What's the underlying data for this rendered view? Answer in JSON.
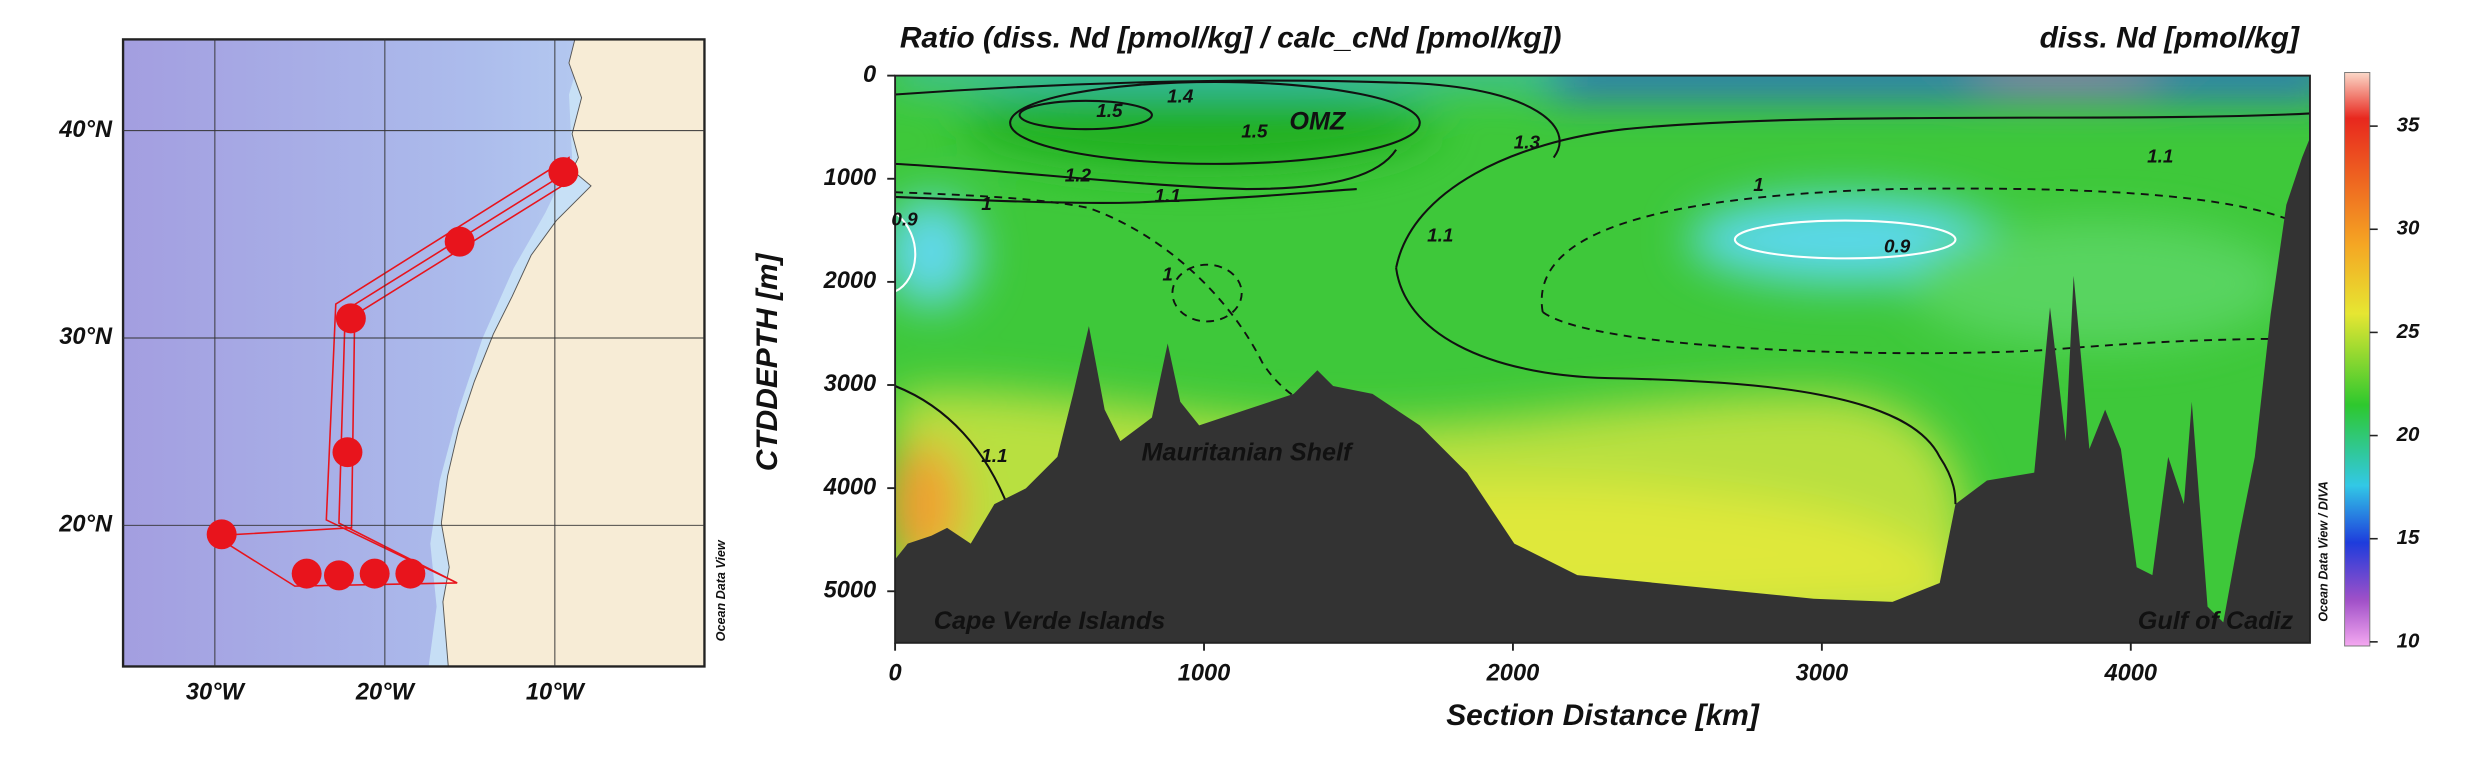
{
  "chart_data": [
    {
      "type": "map",
      "projection": "mercator",
      "credit": "Ocean Data View",
      "x": [
        -9.5,
        -15.6,
        -22.0,
        -22.2,
        -29.6,
        -24.6,
        -22.7,
        -20.6,
        -18.5
      ],
      "values": [
        38.1,
        34.8,
        31.0,
        24.0,
        19.5,
        17.3,
        17.2,
        17.3,
        17.3
      ],
      "color": "#e8141c",
      "xlim": [
        -35.4,
        -1.2
      ],
      "ylim": [
        12,
        44
      ],
      "xticks": [
        {
          "value": -30,
          "label": "30°W"
        },
        {
          "value": -20,
          "label": "20°W"
        },
        {
          "value": -10,
          "label": "10°W"
        }
      ],
      "yticks": [
        {
          "value": 20,
          "label": "20°N"
        },
        {
          "value": 30,
          "label": "30°N"
        },
        {
          "value": 40,
          "label": "40°N"
        }
      ],
      "grid": true
    },
    {
      "type": "section",
      "title": "Ratio (diss. Nd [pmol/kg] / calc_cNd [pmol/kg])",
      "colorbar_title": "diss. Nd [pmol/kg]",
      "xlabel": "Section Distance [km]",
      "ylabel": "CTDDEPTH [m]",
      "credit": "Ocean Data View / DIVA",
      "xlim": [
        0,
        4580
      ],
      "ylim": [
        0,
        5500
      ],
      "y_reversed": true,
      "xticks": [
        0,
        1000,
        2000,
        3000,
        4000
      ],
      "yticks": [
        0,
        1000,
        2000,
        3000,
        4000,
        5000
      ],
      "colorbar": {
        "lim": [
          9.8,
          37.6
        ],
        "ticks": [
          10,
          15,
          20,
          25,
          30,
          35
        ]
      },
      "annotations": [
        "OMZ",
        "Mauritanian Shelf",
        "Cape Verde Islands",
        "Gulf of Cadiz"
      ],
      "contour_labels": [
        "1.5",
        "1.5",
        "1.4",
        "1.3",
        "1.2",
        "1.1",
        "1.1",
        "1.1",
        "1.1",
        "1",
        "1",
        "1",
        "0.9",
        "0.9"
      ]
    }
  ]
}
